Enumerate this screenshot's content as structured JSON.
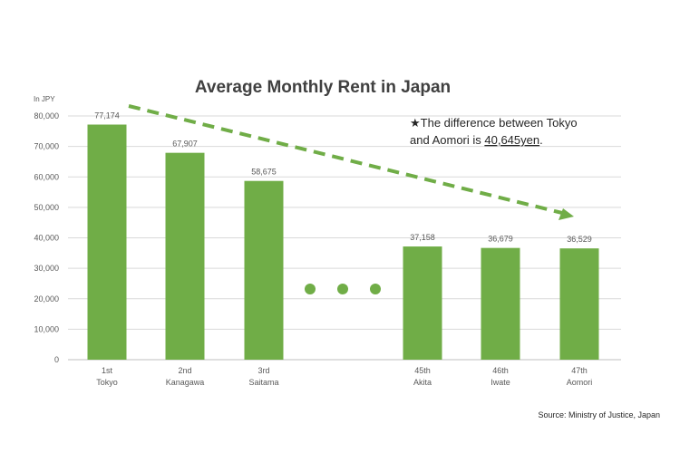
{
  "chart_data": {
    "type": "bar",
    "title": "Average Monthly Rent in Japan",
    "ylabel": "In JPY",
    "ylim": [
      0,
      80000
    ],
    "ytick_step": 10000,
    "yticks": [
      "0",
      "10,000",
      "20,000",
      "30,000",
      "40,000",
      "50,000",
      "60,000",
      "70,000",
      "80,000"
    ],
    "grid": true,
    "bar_color": "#70ad47",
    "trend_color": "#70ad47",
    "categories": [
      {
        "rank": "1st",
        "name": "Tokyo",
        "value": 77174,
        "label": "77,174"
      },
      {
        "rank": "2nd",
        "name": "Kanagawa",
        "value": 67907,
        "label": "67,907"
      },
      {
        "rank": "3rd",
        "name": "Saitama",
        "value": 58675,
        "label": "58,675"
      },
      {
        "rank": "45th",
        "name": "Akita",
        "value": 37158,
        "label": "37,158"
      },
      {
        "rank": "46th",
        "name": "Iwate",
        "value": 36679,
        "label": "36,679"
      },
      {
        "rank": "47th",
        "name": "Aomori",
        "value": 36529,
        "label": "36,529"
      }
    ],
    "annotation": {
      "star": "★",
      "line1": "The difference between Tokyo",
      "line2_prefix": "and Aomori is ",
      "line2_value": "40,645yen",
      "line2_suffix": "."
    },
    "source": "Source: Ministry of Justice, Japan"
  }
}
